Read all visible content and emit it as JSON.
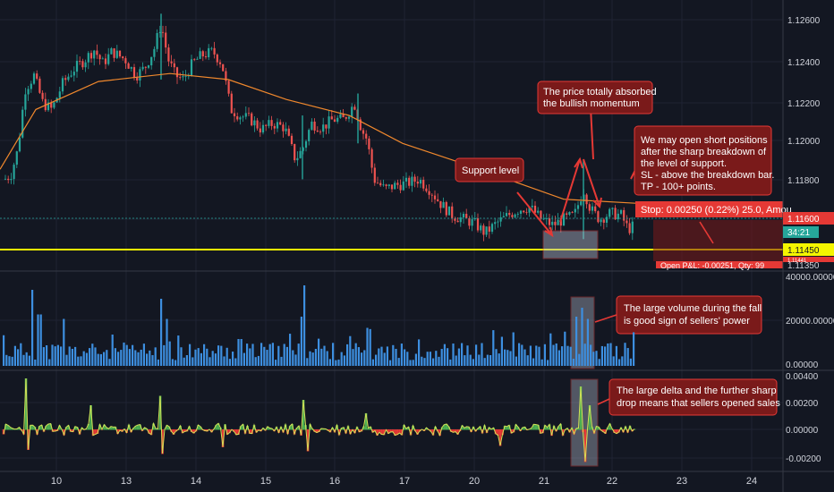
{
  "colors": {
    "background": "#131722",
    "grid": "#1f2333",
    "bull": "#26a69a",
    "bear": "#ef5350",
    "ma": "#f0882d",
    "support": "#f5f500",
    "volume": "#3d8fe0",
    "delta_up": "#4caf50",
    "delta_down": "#e53935",
    "delta_line": "#d4e157",
    "annotation_fill": "#7a1a1a",
    "annotation_border": "#e53935",
    "zone_fill": "#b0b8c8",
    "stop_label": "#e53935",
    "timer_label": "#26a69a",
    "price_label": "#f5f500",
    "ask_label": "#e53935"
  },
  "price_axis": {
    "ticks": [
      "1.12600",
      "1.12400",
      "1.12200",
      "1.12000",
      "1.11800",
      "1.11600",
      "1.11350"
    ],
    "current_price": "1.11600",
    "timer": "34:21",
    "support_price": "1.11450",
    "mini_label": "1.11441"
  },
  "volume_axis": {
    "ticks": [
      "40000.00000",
      "20000.00000",
      "0.00000"
    ]
  },
  "delta_axis": {
    "ticks": [
      "0.00400",
      "0.00200",
      "0.00000",
      "-0.00200"
    ]
  },
  "time_axis": {
    "ticks": [
      "10",
      "13",
      "14",
      "15",
      "16",
      "17",
      "20",
      "21",
      "22",
      "23",
      "24"
    ]
  },
  "annotations": {
    "support": "Support level",
    "absorb_line1": "The price totally absorbed",
    "absorb_line2": "the bullish momentum",
    "short_line1": "We may open short positions",
    "short_line2": "after the sharp breakdown of",
    "short_line3": "the level of support.",
    "short_line4": "SL - above the breakdown bar.",
    "short_line5": "TP - 100+ points.",
    "volume_line1": "The large volume during the fall",
    "volume_line2": "is good sign of sellers' power",
    "delta_line1": "The large delta and the further sharp",
    "delta_line2": "drop means that sellers opened sales"
  },
  "position": {
    "stop_label": "Stop: 0.00250 (0.22%) 25.0, Amou",
    "pl_label": "Open P&L: -0.00251, Qty: 99"
  },
  "chart_data": [
    {
      "type": "candlestick",
      "title": "",
      "xlabel": "",
      "ylabel": "",
      "x_ticks": [
        "10",
        "13",
        "14",
        "15",
        "16",
        "17",
        "20",
        "21",
        "22",
        "23",
        "24"
      ],
      "ylim": [
        1.1135,
        1.1265
      ],
      "series": [
        {
          "name": "",
          "values_approx": "EUR/USD-style hourly candles rising from ~1.1175 to ~1.1260 then declining to ~1.1150"
        }
      ],
      "moving_average_approx": [
        [
          0,
          1.1185
        ],
        [
          40,
          1.1215
        ],
        [
          110,
          1.1229
        ],
        [
          190,
          1.1233
        ],
        [
          255,
          1.123
        ],
        [
          320,
          1.122
        ],
        [
          390,
          1.1212
        ],
        [
          450,
          1.1198
        ],
        [
          530,
          1.1186
        ],
        [
          580,
          1.1178
        ],
        [
          630,
          1.117
        ],
        [
          710,
          1.1168
        ]
      ],
      "support_level": 1.1145,
      "grid": true
    },
    {
      "type": "bar",
      "title": "",
      "ylim": [
        0,
        40000
      ],
      "y_ticks": [
        "40000.00000",
        "20000.00000",
        "0.00000"
      ],
      "values_approx": "hourly volume, typical 3000-12000 with spikes up to ~35000"
    },
    {
      "type": "area",
      "title": "",
      "ylim": [
        -0.003,
        0.0045
      ],
      "y_ticks": [
        "0.00400",
        "0.00200",
        "0.00000",
        "-0.00200"
      ],
      "values_approx": "delta oscillating around 0 with spikes near +0.004 and -0.0025"
    }
  ]
}
